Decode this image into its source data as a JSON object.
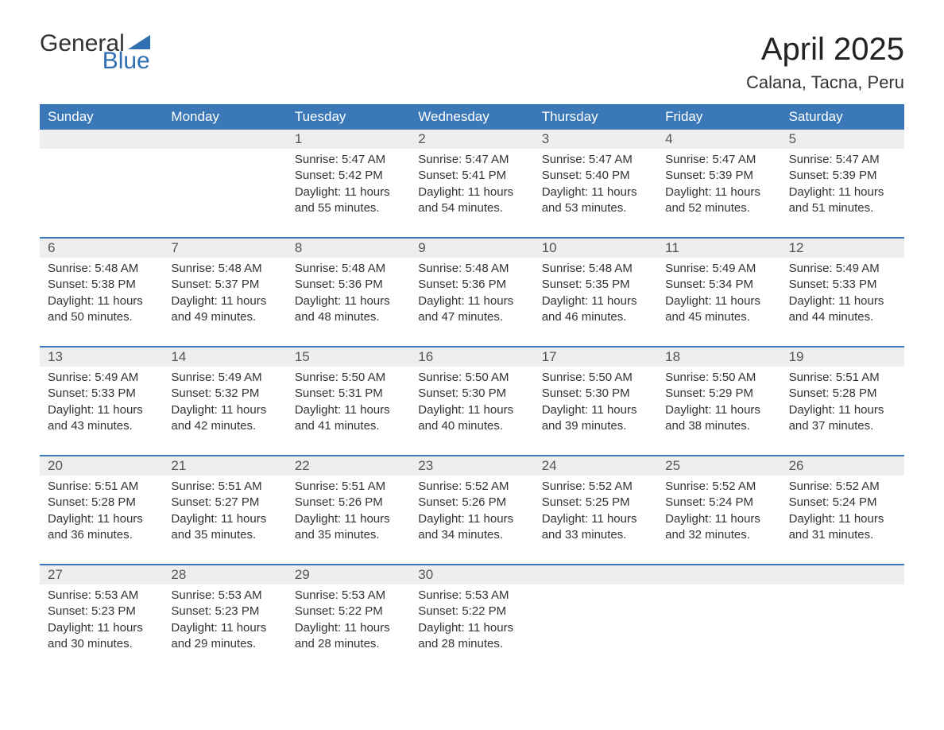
{
  "brand": {
    "word1": "General",
    "word2": "Blue",
    "brand_color": "#2f6fb2"
  },
  "title": "April 2025",
  "location": "Calana, Tacna, Peru",
  "colors": {
    "header_bg": "#3b78b8",
    "header_text": "#ffffff",
    "strip_bg": "#eeeeee",
    "week_divider": "#3b78b8",
    "body_text": "#333333"
  },
  "dow": [
    "Sunday",
    "Monday",
    "Tuesday",
    "Wednesday",
    "Thursday",
    "Friday",
    "Saturday"
  ],
  "weeks": [
    [
      null,
      null,
      {
        "n": "1",
        "sunrise": "5:47 AM",
        "sunset": "5:42 PM",
        "daylight": "11 hours and 55 minutes."
      },
      {
        "n": "2",
        "sunrise": "5:47 AM",
        "sunset": "5:41 PM",
        "daylight": "11 hours and 54 minutes."
      },
      {
        "n": "3",
        "sunrise": "5:47 AM",
        "sunset": "5:40 PM",
        "daylight": "11 hours and 53 minutes."
      },
      {
        "n": "4",
        "sunrise": "5:47 AM",
        "sunset": "5:39 PM",
        "daylight": "11 hours and 52 minutes."
      },
      {
        "n": "5",
        "sunrise": "5:47 AM",
        "sunset": "5:39 PM",
        "daylight": "11 hours and 51 minutes."
      }
    ],
    [
      {
        "n": "6",
        "sunrise": "5:48 AM",
        "sunset": "5:38 PM",
        "daylight": "11 hours and 50 minutes."
      },
      {
        "n": "7",
        "sunrise": "5:48 AM",
        "sunset": "5:37 PM",
        "daylight": "11 hours and 49 minutes."
      },
      {
        "n": "8",
        "sunrise": "5:48 AM",
        "sunset": "5:36 PM",
        "daylight": "11 hours and 48 minutes."
      },
      {
        "n": "9",
        "sunrise": "5:48 AM",
        "sunset": "5:36 PM",
        "daylight": "11 hours and 47 minutes."
      },
      {
        "n": "10",
        "sunrise": "5:48 AM",
        "sunset": "5:35 PM",
        "daylight": "11 hours and 46 minutes."
      },
      {
        "n": "11",
        "sunrise": "5:49 AM",
        "sunset": "5:34 PM",
        "daylight": "11 hours and 45 minutes."
      },
      {
        "n": "12",
        "sunrise": "5:49 AM",
        "sunset": "5:33 PM",
        "daylight": "11 hours and 44 minutes."
      }
    ],
    [
      {
        "n": "13",
        "sunrise": "5:49 AM",
        "sunset": "5:33 PM",
        "daylight": "11 hours and 43 minutes."
      },
      {
        "n": "14",
        "sunrise": "5:49 AM",
        "sunset": "5:32 PM",
        "daylight": "11 hours and 42 minutes."
      },
      {
        "n": "15",
        "sunrise": "5:50 AM",
        "sunset": "5:31 PM",
        "daylight": "11 hours and 41 minutes."
      },
      {
        "n": "16",
        "sunrise": "5:50 AM",
        "sunset": "5:30 PM",
        "daylight": "11 hours and 40 minutes."
      },
      {
        "n": "17",
        "sunrise": "5:50 AM",
        "sunset": "5:30 PM",
        "daylight": "11 hours and 39 minutes."
      },
      {
        "n": "18",
        "sunrise": "5:50 AM",
        "sunset": "5:29 PM",
        "daylight": "11 hours and 38 minutes."
      },
      {
        "n": "19",
        "sunrise": "5:51 AM",
        "sunset": "5:28 PM",
        "daylight": "11 hours and 37 minutes."
      }
    ],
    [
      {
        "n": "20",
        "sunrise": "5:51 AM",
        "sunset": "5:28 PM",
        "daylight": "11 hours and 36 minutes."
      },
      {
        "n": "21",
        "sunrise": "5:51 AM",
        "sunset": "5:27 PM",
        "daylight": "11 hours and 35 minutes."
      },
      {
        "n": "22",
        "sunrise": "5:51 AM",
        "sunset": "5:26 PM",
        "daylight": "11 hours and 35 minutes."
      },
      {
        "n": "23",
        "sunrise": "5:52 AM",
        "sunset": "5:26 PM",
        "daylight": "11 hours and 34 minutes."
      },
      {
        "n": "24",
        "sunrise": "5:52 AM",
        "sunset": "5:25 PM",
        "daylight": "11 hours and 33 minutes."
      },
      {
        "n": "25",
        "sunrise": "5:52 AM",
        "sunset": "5:24 PM",
        "daylight": "11 hours and 32 minutes."
      },
      {
        "n": "26",
        "sunrise": "5:52 AM",
        "sunset": "5:24 PM",
        "daylight": "11 hours and 31 minutes."
      }
    ],
    [
      {
        "n": "27",
        "sunrise": "5:53 AM",
        "sunset": "5:23 PM",
        "daylight": "11 hours and 30 minutes."
      },
      {
        "n": "28",
        "sunrise": "5:53 AM",
        "sunset": "5:23 PM",
        "daylight": "11 hours and 29 minutes."
      },
      {
        "n": "29",
        "sunrise": "5:53 AM",
        "sunset": "5:22 PM",
        "daylight": "11 hours and 28 minutes."
      },
      {
        "n": "30",
        "sunrise": "5:53 AM",
        "sunset": "5:22 PM",
        "daylight": "11 hours and 28 minutes."
      },
      null,
      null,
      null
    ]
  ],
  "labels": {
    "sunrise": "Sunrise: ",
    "sunset": "Sunset: ",
    "daylight": "Daylight: "
  }
}
